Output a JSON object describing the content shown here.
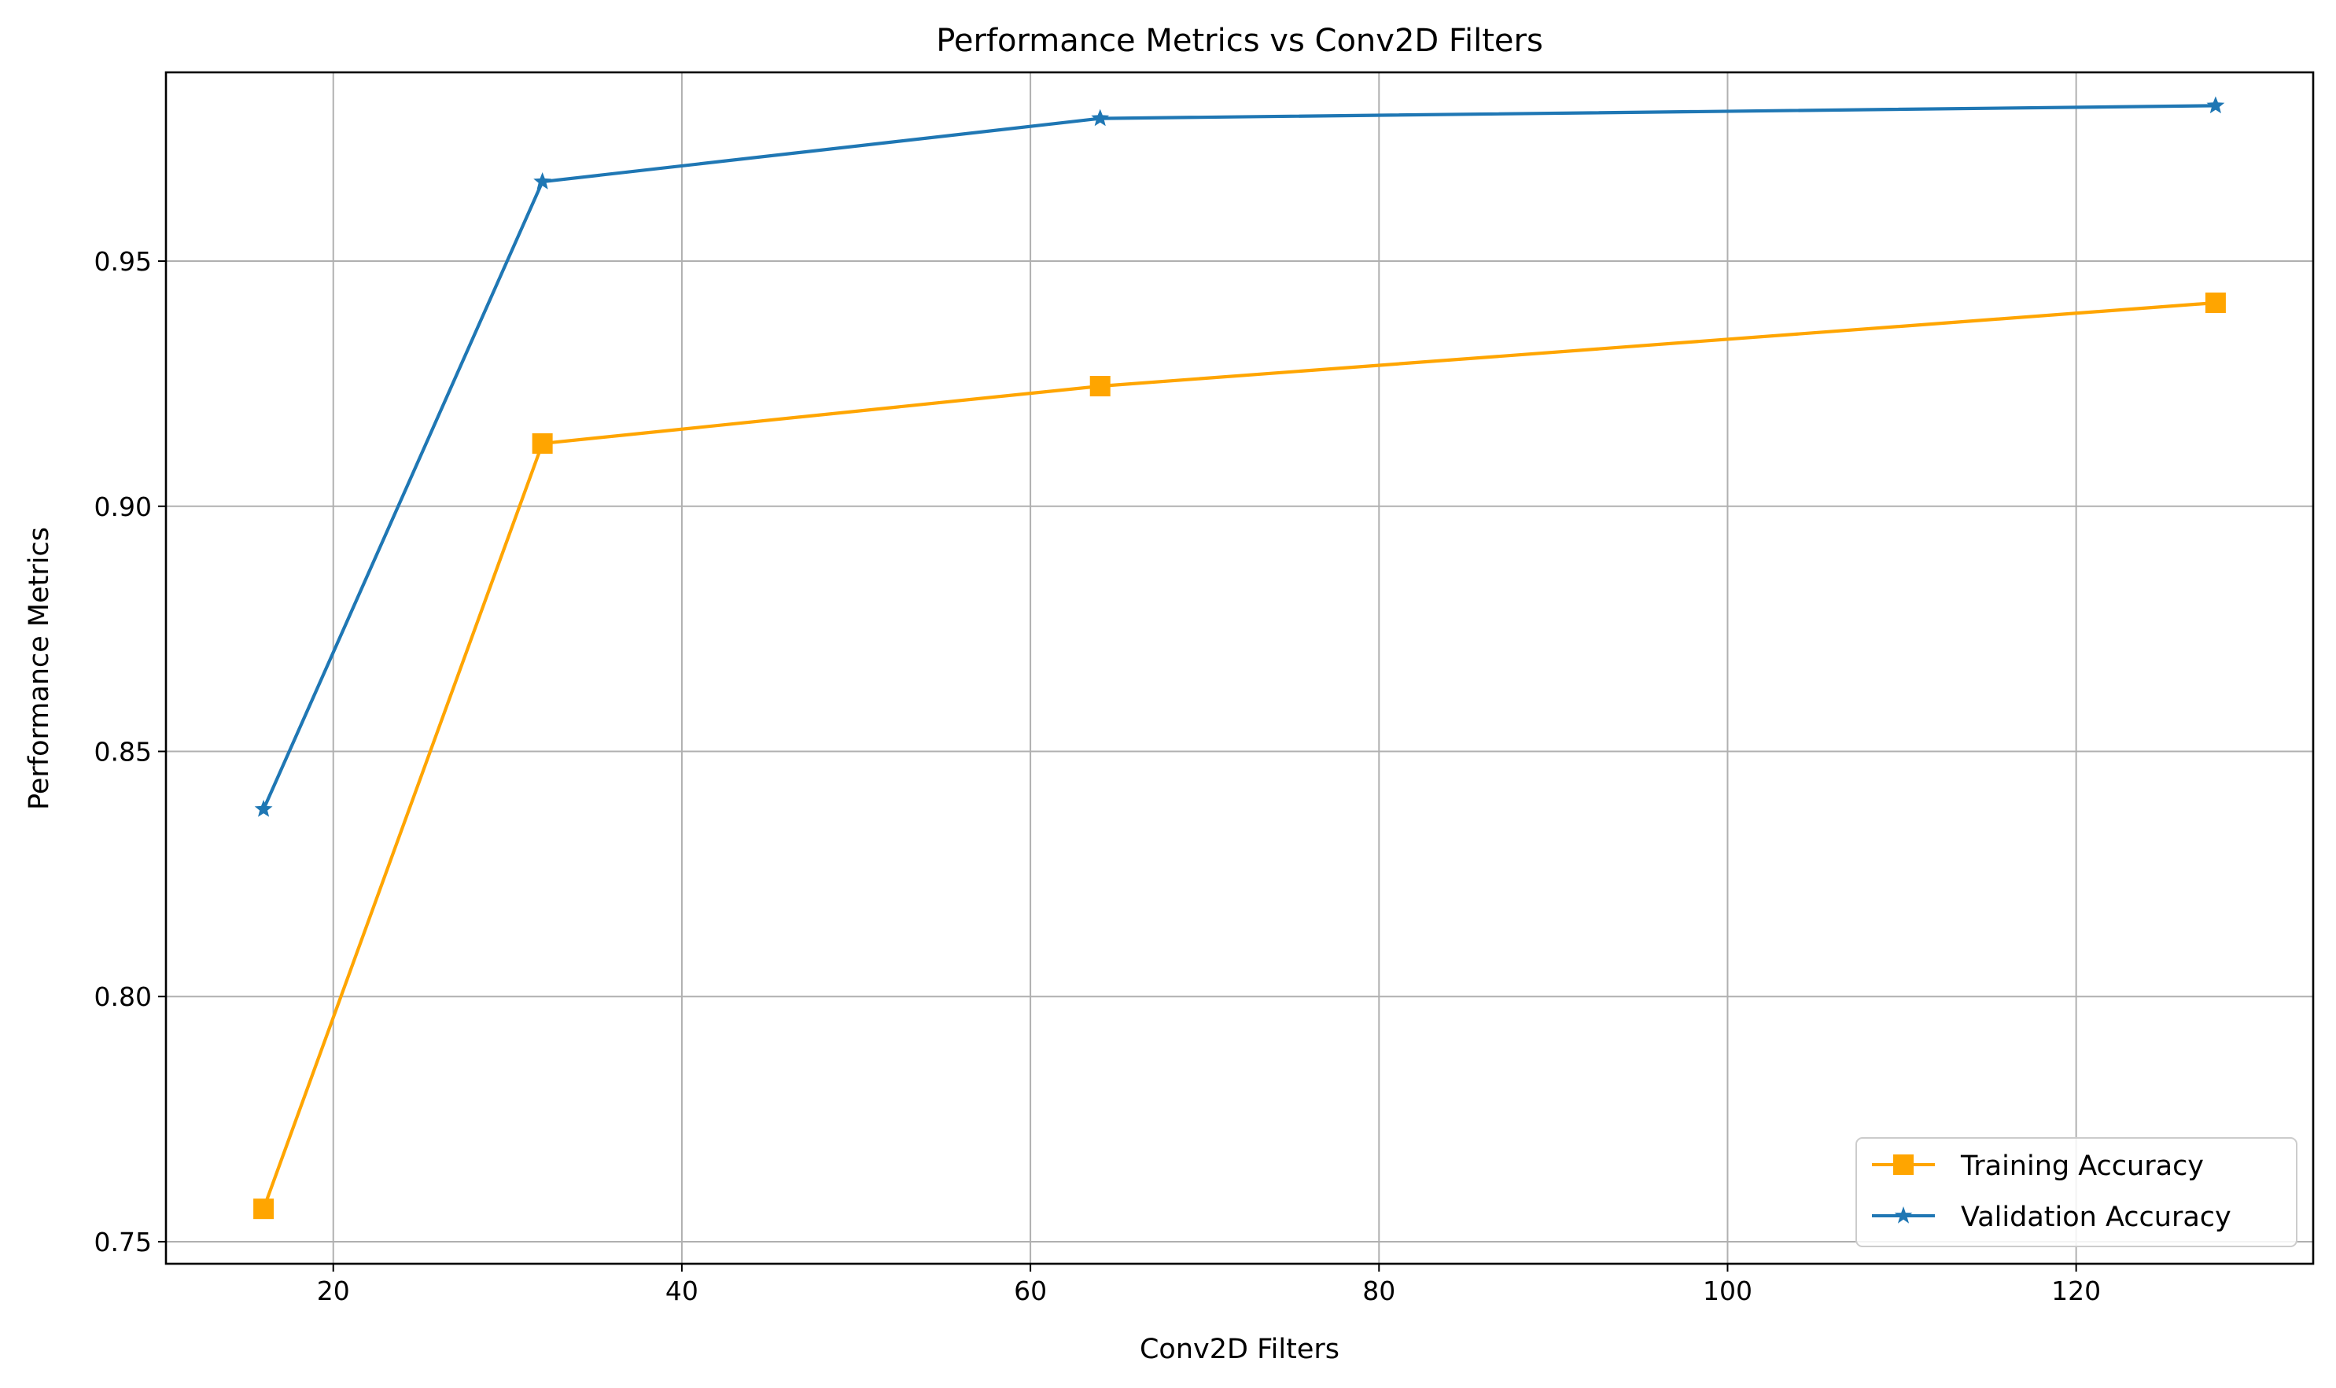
{
  "chart_data": {
    "type": "line",
    "title": "Performance Metrics vs Conv2D Filters",
    "xlabel": "Conv2D Filters",
    "ylabel": "Performance Metrics",
    "x": [
      16,
      32,
      64,
      128
    ],
    "xlim": [
      10.4,
      133.6
    ],
    "ylim": [
      0.7455,
      0.9885
    ],
    "xticks": [
      20,
      40,
      60,
      80,
      100,
      120
    ],
    "yticks": [
      0.75,
      0.8,
      0.85,
      0.9,
      0.95
    ],
    "xtick_labels": [
      "20",
      "40",
      "60",
      "80",
      "100",
      "120"
    ],
    "ytick_labels": [
      "0.75",
      "0.80",
      "0.85",
      "0.90",
      "0.95"
    ],
    "grid": true,
    "legend_position": "lower right",
    "series": [
      {
        "name": "Training Accuracy",
        "values": [
          0.7567,
          0.9128,
          0.9245,
          0.9415
        ],
        "color": "#ffa500",
        "marker": "square"
      },
      {
        "name": "Validation Accuracy",
        "values": [
          0.8382,
          0.9662,
          0.9791,
          0.9817
        ],
        "color": "#1f77b4",
        "marker": "star"
      }
    ]
  }
}
